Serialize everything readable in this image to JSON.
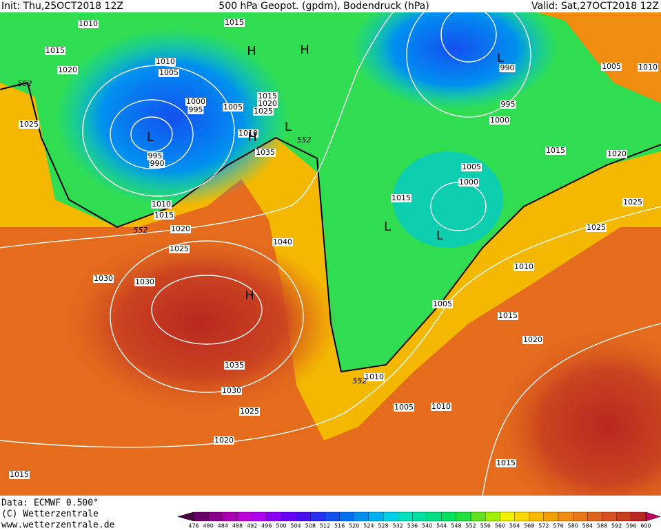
{
  "header": {
    "init": "Init: Thu,25OCT2018 12Z",
    "title": "500 hPa Geopot. (gpdm), Bodendruck (hPa)",
    "valid": "Valid: Sat,27OCT2018 12Z"
  },
  "isobar_labels": [
    "1010",
    "1015",
    "1015",
    "1020",
    "1010",
    "1005",
    "1000",
    "995",
    "1005",
    "1015",
    "1020",
    "1025",
    "1025",
    "995",
    "990",
    "1010",
    "1035",
    "1010",
    "1015",
    "1020",
    "1025",
    "1040",
    "1030",
    "1030",
    "1035",
    "1030",
    "1025",
    "1020",
    "1015",
    "990",
    "995",
    "1000",
    "1005",
    "1010",
    "1015",
    "1020",
    "1005",
    "1000",
    "1015",
    "1025",
    "1025",
    "1010",
    "1005",
    "1015",
    "1020",
    "1010",
    "1005",
    "1010",
    "1015"
  ],
  "contour_labels": [
    "552",
    "552",
    "552",
    "552"
  ],
  "pressure_centers": [
    "L",
    "H",
    "H",
    "L",
    "L",
    "H",
    "L",
    "L",
    "H"
  ],
  "footer": {
    "data": "Data: ECMWF  0.500°",
    "copyright": "(C) Wetterzentrale",
    "url": "www.wetterzentrale.de"
  },
  "colorbar": {
    "ticks": [
      476,
      480,
      484,
      488,
      492,
      496,
      500,
      504,
      508,
      512,
      516,
      520,
      524,
      528,
      532,
      536,
      540,
      544,
      548,
      552,
      556,
      560,
      564,
      568,
      572,
      576,
      580,
      584,
      588,
      592,
      596,
      600
    ],
    "colors": [
      "#4b0040",
      "#6a006a",
      "#8a008a",
      "#a800b0",
      "#c000d8",
      "#b000f0",
      "#8a00f8",
      "#6a00f8",
      "#4a10f0",
      "#2a30f0",
      "#1450f0",
      "#0070f0",
      "#0090f0",
      "#00b0f0",
      "#00d0e8",
      "#00e0c0",
      "#00e0a0",
      "#00e080",
      "#00e060",
      "#20e040",
      "#60e020",
      "#a0f000",
      "#f0f000",
      "#f8d800",
      "#f8b800",
      "#f0a000",
      "#f08c10",
      "#e87818",
      "#e06420",
      "#d85020",
      "#c83c20",
      "#b82820",
      "#c00060"
    ]
  }
}
